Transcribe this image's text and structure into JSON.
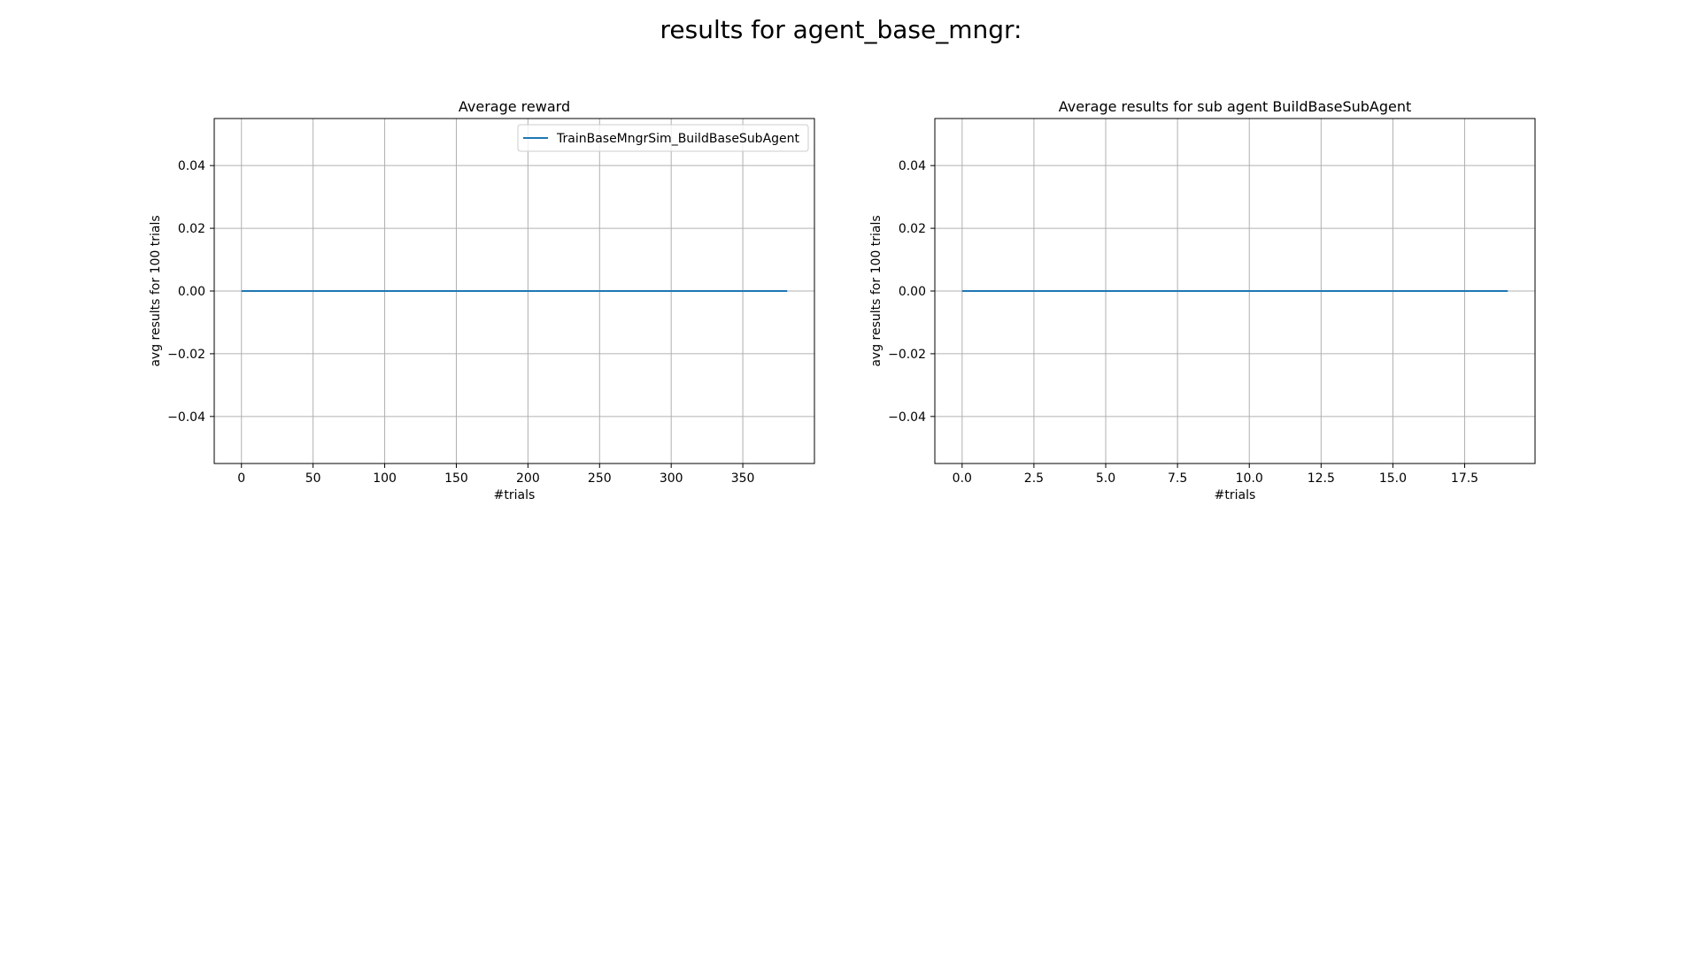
{
  "figure": {
    "title": "results for agent_base_mngr:"
  },
  "colors": {
    "line": "#1f77b4",
    "grid": "#b0b0b0",
    "axes": "#000000"
  },
  "chart_data": [
    {
      "type": "line",
      "title": "Average reward",
      "xlabel": "#trials",
      "ylabel": "avg results for 100 trials",
      "xlim": [
        -19,
        400
      ],
      "ylim": [
        -0.055,
        0.055
      ],
      "xticks": [
        0,
        50,
        100,
        150,
        200,
        250,
        300,
        350
      ],
      "xtick_labels": [
        "0",
        "50",
        "100",
        "150",
        "200",
        "250",
        "300",
        "350"
      ],
      "yticks": [
        0.04,
        0.02,
        0.0,
        -0.02,
        -0.04
      ],
      "ytick_labels": [
        "0.04",
        "0.02",
        "0.00",
        "−0.02",
        "−0.04"
      ],
      "grid": true,
      "legend": "top-right",
      "series": [
        {
          "name": "TrainBaseMngrSim_BuildBaseSubAgent",
          "x": [
            0,
            381
          ],
          "values": [
            0,
            0
          ]
        }
      ]
    },
    {
      "type": "line",
      "title": "Average results for sub agent BuildBaseSubAgent",
      "xlabel": "#trials",
      "ylabel": "avg results for 100 trials",
      "xlim": [
        -0.95,
        19.95
      ],
      "ylim": [
        -0.055,
        0.055
      ],
      "xticks": [
        0.0,
        2.5,
        5.0,
        7.5,
        10.0,
        12.5,
        15.0,
        17.5
      ],
      "xtick_labels": [
        "0.0",
        "2.5",
        "5.0",
        "7.5",
        "10.0",
        "12.5",
        "15.0",
        "17.5"
      ],
      "yticks": [
        0.04,
        0.02,
        0.0,
        -0.02,
        -0.04
      ],
      "ytick_labels": [
        "0.04",
        "0.02",
        "0.00",
        "−0.02",
        "−0.04"
      ],
      "grid": true,
      "legend": "none",
      "series": [
        {
          "x": [
            0,
            19
          ],
          "values": [
            0,
            0
          ]
        }
      ]
    }
  ]
}
